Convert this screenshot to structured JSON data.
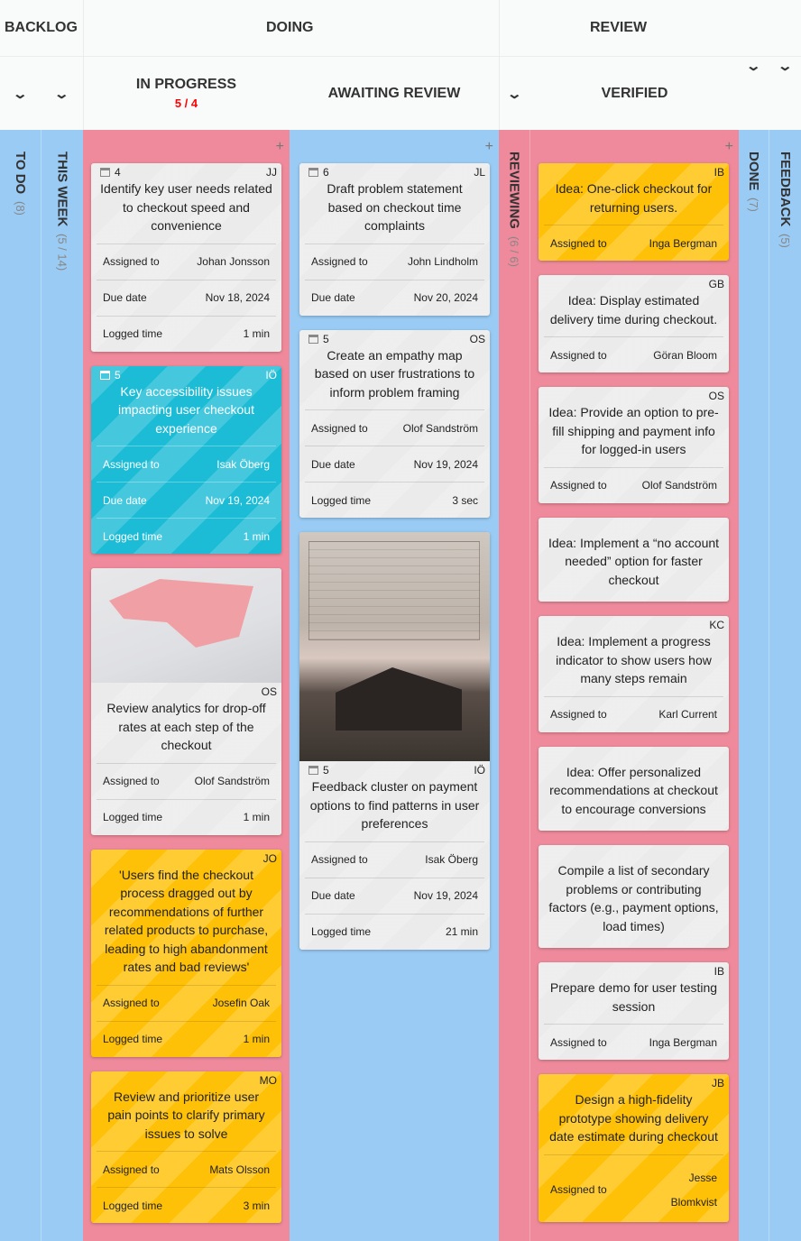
{
  "groups": {
    "backlog": "BACKLOG",
    "doing": "DOING",
    "review": "REVIEW"
  },
  "columns": {
    "todo": {
      "title": "TO DO",
      "count": "(8)"
    },
    "this_week": {
      "title": "THIS WEEK",
      "count": "(5 / 14)"
    },
    "in_progress": {
      "title": "IN PROGRESS",
      "wip": "5 / 4"
    },
    "awaiting_review": {
      "title": "AWAITING REVIEW"
    },
    "reviewing": {
      "title": "REVIEWING",
      "count": "(6 / 6)"
    },
    "verified": {
      "title": "VERIFIED"
    },
    "done": {
      "title": "DONE",
      "count": "(7)"
    },
    "feedback": {
      "title": "FEEDBACK",
      "count": "(5)"
    }
  },
  "colors": {
    "wip_limit": "#ff0000",
    "pink_lane": "#ee8a9b",
    "blue_lane": "#99cbf4",
    "card": "#ebebeb",
    "yellow": "#ffc107",
    "cyan": "#1cbcd6"
  },
  "cards": {
    "in_progress": [
      {
        "num": "4",
        "initials": "JJ",
        "title": "Identify key user needs related to checkout speed and convenience",
        "color": "gray",
        "fields": [
          [
            "Assigned to",
            "Johan Jonsson"
          ],
          [
            "Due date",
            "Nov 18, 2024"
          ],
          [
            "Logged time",
            "1 min"
          ]
        ]
      },
      {
        "num": "5",
        "initials": "IÖ",
        "title": "Key accessibility issues impacting user checkout experience",
        "color": "cyan",
        "fields": [
          [
            "Assigned to",
            "Isak Öberg"
          ],
          [
            "Due date",
            "Nov 19, 2024"
          ],
          [
            "Logged time",
            "1 min"
          ]
        ]
      },
      {
        "num": "",
        "initials": "OS",
        "title": "Review analytics for drop-off rates at each step of the checkout",
        "color": "gray",
        "image": "analytics-diagram",
        "fields": [
          [
            "Assigned to",
            "Olof Sandström"
          ],
          [
            "Logged time",
            "1 min"
          ]
        ]
      },
      {
        "num": "",
        "initials": "JO",
        "title": "'Users find the checkout process dragged out by recommendations of further related products to purchase, leading to high abandonment rates and bad reviews'",
        "color": "yellow",
        "fields": [
          [
            "Assigned to",
            "Josefin Oak"
          ],
          [
            "Logged time",
            "1 min"
          ]
        ]
      },
      {
        "num": "",
        "initials": "MO",
        "title": "Review and prioritize user pain points to clarify primary issues to solve",
        "color": "yellow",
        "fields": [
          [
            "Assigned to",
            "Mats Olsson"
          ],
          [
            "Logged time",
            "3 min"
          ]
        ]
      }
    ],
    "awaiting_review": [
      {
        "num": "6",
        "initials": "JL",
        "title": "Draft problem statement based on checkout time complaints",
        "color": "gray",
        "fields": [
          [
            "Assigned to",
            "John Lindholm"
          ],
          [
            "Due date",
            "Nov 20, 2024"
          ]
        ]
      },
      {
        "num": "5",
        "initials": "OS",
        "title": "Create an empathy map based on user frustrations to inform problem framing",
        "color": "gray",
        "fields": [
          [
            "Assigned to",
            "Olof Sandström"
          ],
          [
            "Due date",
            "Nov 19, 2024"
          ],
          [
            "Logged time",
            "3 sec"
          ]
        ]
      },
      {
        "num": "5",
        "initials": "IÖ",
        "title": "Feedback cluster on payment options to find patterns in user preferences",
        "color": "gray",
        "image": "house-sketch",
        "fields": [
          [
            "Assigned to",
            "Isak Öberg"
          ],
          [
            "Due date",
            "Nov 19, 2024"
          ],
          [
            "Logged time",
            "21 min"
          ]
        ]
      }
    ],
    "verified": [
      {
        "num": "",
        "initials": "IB",
        "title": "Idea: One-click checkout for returning users.",
        "color": "yellow",
        "fields": [
          [
            "Assigned to",
            "Inga Bergman"
          ]
        ]
      },
      {
        "num": "",
        "initials": "GB",
        "title": "Idea: Display estimated delivery time during checkout.",
        "color": "gray",
        "fields": [
          [
            "Assigned to",
            "Göran Bloom"
          ]
        ]
      },
      {
        "num": "",
        "initials": "OS",
        "title": "Idea: Provide an option to pre-fill shipping and payment info for logged-in users",
        "color": "gray",
        "fields": [
          [
            "Assigned to",
            "Olof Sandström"
          ]
        ]
      },
      {
        "num": "",
        "initials": "",
        "title": "Idea: Implement a “no account needed” option for faster checkout",
        "color": "gray",
        "fields": []
      },
      {
        "num": "",
        "initials": "KC",
        "title": "Idea: Implement a progress indicator to show users how many steps remain",
        "color": "gray",
        "fields": [
          [
            "Assigned to",
            "Karl Current"
          ]
        ]
      },
      {
        "num": "",
        "initials": "",
        "title": "Idea: Offer personalized recommendations at checkout to encourage conversions",
        "color": "gray",
        "fields": []
      },
      {
        "num": "",
        "initials": "",
        "title": "Compile a list of secondary problems or contributing factors (e.g., payment options, load times)",
        "color": "gray",
        "fields": []
      },
      {
        "num": "",
        "initials": "IB",
        "title": "Prepare demo for user testing session",
        "color": "gray",
        "fields": [
          [
            "Assigned to",
            "Inga Bergman"
          ]
        ]
      },
      {
        "num": "",
        "initials": "JB",
        "title": "Design a high-fidelity prototype showing delivery date estimate during checkout",
        "color": "yellow",
        "fields": [
          [
            "Assigned to",
            "Jesse Blomkvist"
          ]
        ]
      }
    ]
  }
}
